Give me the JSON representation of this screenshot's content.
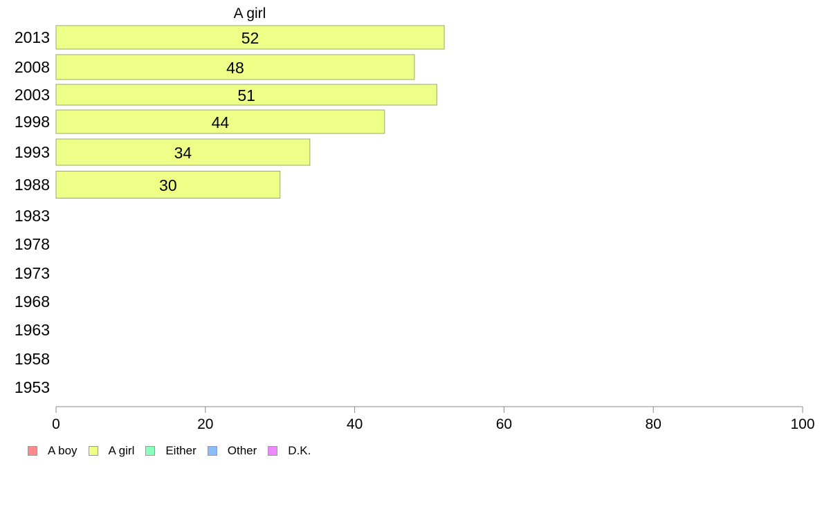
{
  "chart_data": {
    "type": "bar",
    "orientation": "horizontal",
    "title": "A girl",
    "categories": [
      "2013",
      "2008",
      "2003",
      "1998",
      "1993",
      "1988",
      "1983",
      "1978",
      "1973",
      "1968",
      "1963",
      "1958",
      "1953"
    ],
    "series": [
      {
        "name": "A girl",
        "color": "#eeff88",
        "values": [
          52,
          48,
          51,
          44,
          34,
          30,
          null,
          null,
          null,
          null,
          null,
          null,
          null
        ]
      }
    ],
    "data_labels": [
      "52",
      "48",
      "51",
      "44",
      "34",
      "30",
      "",
      "",
      "",
      "",
      "",
      "",
      ""
    ],
    "xlim": [
      0,
      100
    ],
    "xticks": [
      "0",
      "20",
      "40",
      "60",
      "80",
      "100"
    ],
    "grid": false,
    "legend": {
      "placement": "bottom-left",
      "items": [
        {
          "label": "A boy",
          "color": "#ff8888"
        },
        {
          "label": "A girl",
          "color": "#eeff88"
        },
        {
          "label": "Either",
          "color": "#88ffbb"
        },
        {
          "label": "Other",
          "color": "#88bbff"
        },
        {
          "label": "D.K.",
          "color": "#ee88ff"
        }
      ]
    }
  }
}
